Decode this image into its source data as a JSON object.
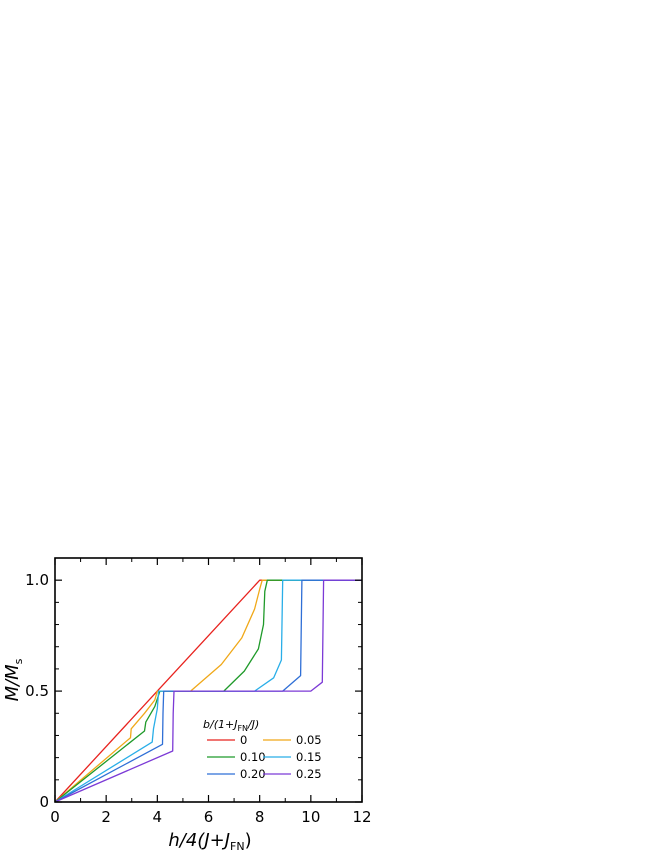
{
  "chart_data": {
    "type": "line",
    "xlabel": {
      "main": "h/4(J+J",
      "sub": "FN",
      "close": ")"
    },
    "ylabel": {
      "main": "M/M",
      "sub": "s"
    },
    "xlim": [
      0,
      12
    ],
    "ylim": [
      0,
      1.1
    ],
    "xticks": [
      0,
      2,
      4,
      6,
      8,
      10,
      12
    ],
    "yticks": [
      0,
      0.5,
      1.0
    ],
    "ytick_labels": [
      "0",
      "0.5",
      "1.0"
    ],
    "grid": false,
    "legend": {
      "placement": "bottom-right",
      "title": {
        "main": "b/(1+J",
        "sub": "FN",
        "rest": "/J)"
      }
    },
    "series": [
      {
        "name": "0",
        "color": "#e8231f",
        "x": [
          0,
          4,
          8,
          12
        ],
        "y": [
          0,
          0.5,
          1.0,
          1.0
        ]
      },
      {
        "name": "0.05",
        "color": "#f0a818",
        "x": [
          0,
          2.95,
          2.98,
          3.5,
          3.9,
          4.0,
          5.3,
          6.5,
          7.3,
          7.8,
          8.0,
          8.1,
          12
        ],
        "y": [
          0,
          0.29,
          0.33,
          0.4,
          0.46,
          0.5,
          0.5,
          0.62,
          0.74,
          0.87,
          0.96,
          1.0,
          1.0
        ]
      },
      {
        "name": "0.10",
        "color": "#1f9a2a",
        "x": [
          0,
          3.5,
          3.55,
          3.9,
          4.1,
          6.6,
          7.4,
          7.95,
          8.15,
          8.2,
          8.3,
          12
        ],
        "y": [
          0,
          0.32,
          0.36,
          0.43,
          0.5,
          0.5,
          0.59,
          0.69,
          0.8,
          0.95,
          1.0,
          1.0
        ]
      },
      {
        "name": "0.15",
        "color": "#29aee8",
        "x": [
          0,
          3.8,
          3.85,
          4.0,
          4.05,
          7.8,
          8.55,
          8.85,
          8.9,
          12
        ],
        "y": [
          0,
          0.27,
          0.33,
          0.42,
          0.5,
          0.5,
          0.56,
          0.64,
          1.0,
          1.0
        ]
      },
      {
        "name": "0.20",
        "color": "#2f6fd6",
        "x": [
          0,
          4.2,
          4.22,
          4.25,
          8.9,
          9.6,
          9.65,
          12
        ],
        "y": [
          0,
          0.26,
          0.4,
          0.5,
          0.5,
          0.57,
          1.0,
          1.0
        ]
      },
      {
        "name": "0.25",
        "color": "#7c3ad6",
        "x": [
          0,
          4.6,
          4.62,
          4.65,
          10.0,
          10.45,
          10.5,
          12
        ],
        "y": [
          0,
          0.23,
          0.4,
          0.5,
          0.5,
          0.54,
          1.0,
          1.0
        ]
      }
    ]
  }
}
